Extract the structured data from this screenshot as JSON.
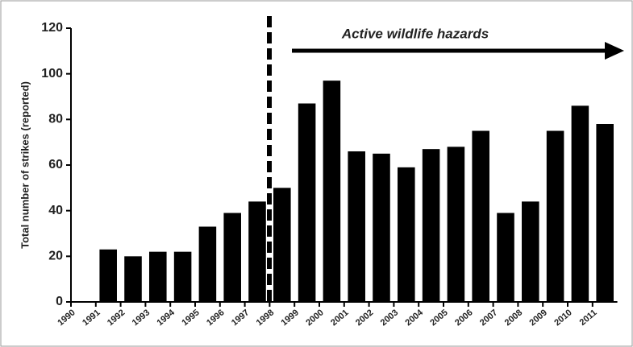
{
  "chart_data": {
    "type": "bar",
    "ylabel": "Total number of strikes (reported)",
    "annotation": "Active wildlife hazards",
    "categories": [
      "1990",
      "1991",
      "1992",
      "1993",
      "1994",
      "1995",
      "1996",
      "1997",
      "1998",
      "1999",
      "2000",
      "2001",
      "2002",
      "2003",
      "2004",
      "2005",
      "2006",
      "2007",
      "2008",
      "2009",
      "2010",
      "2011"
    ],
    "values": [
      null,
      23,
      20,
      22,
      22,
      33,
      39,
      44,
      50,
      87,
      97,
      66,
      65,
      59,
      67,
      68,
      75,
      39,
      44,
      75,
      86,
      78
    ],
    "color": "#000000",
    "ylim": [
      0,
      120
    ],
    "yticks": [
      0,
      20,
      40,
      60,
      80,
      100,
      120
    ],
    "grid": false
  }
}
